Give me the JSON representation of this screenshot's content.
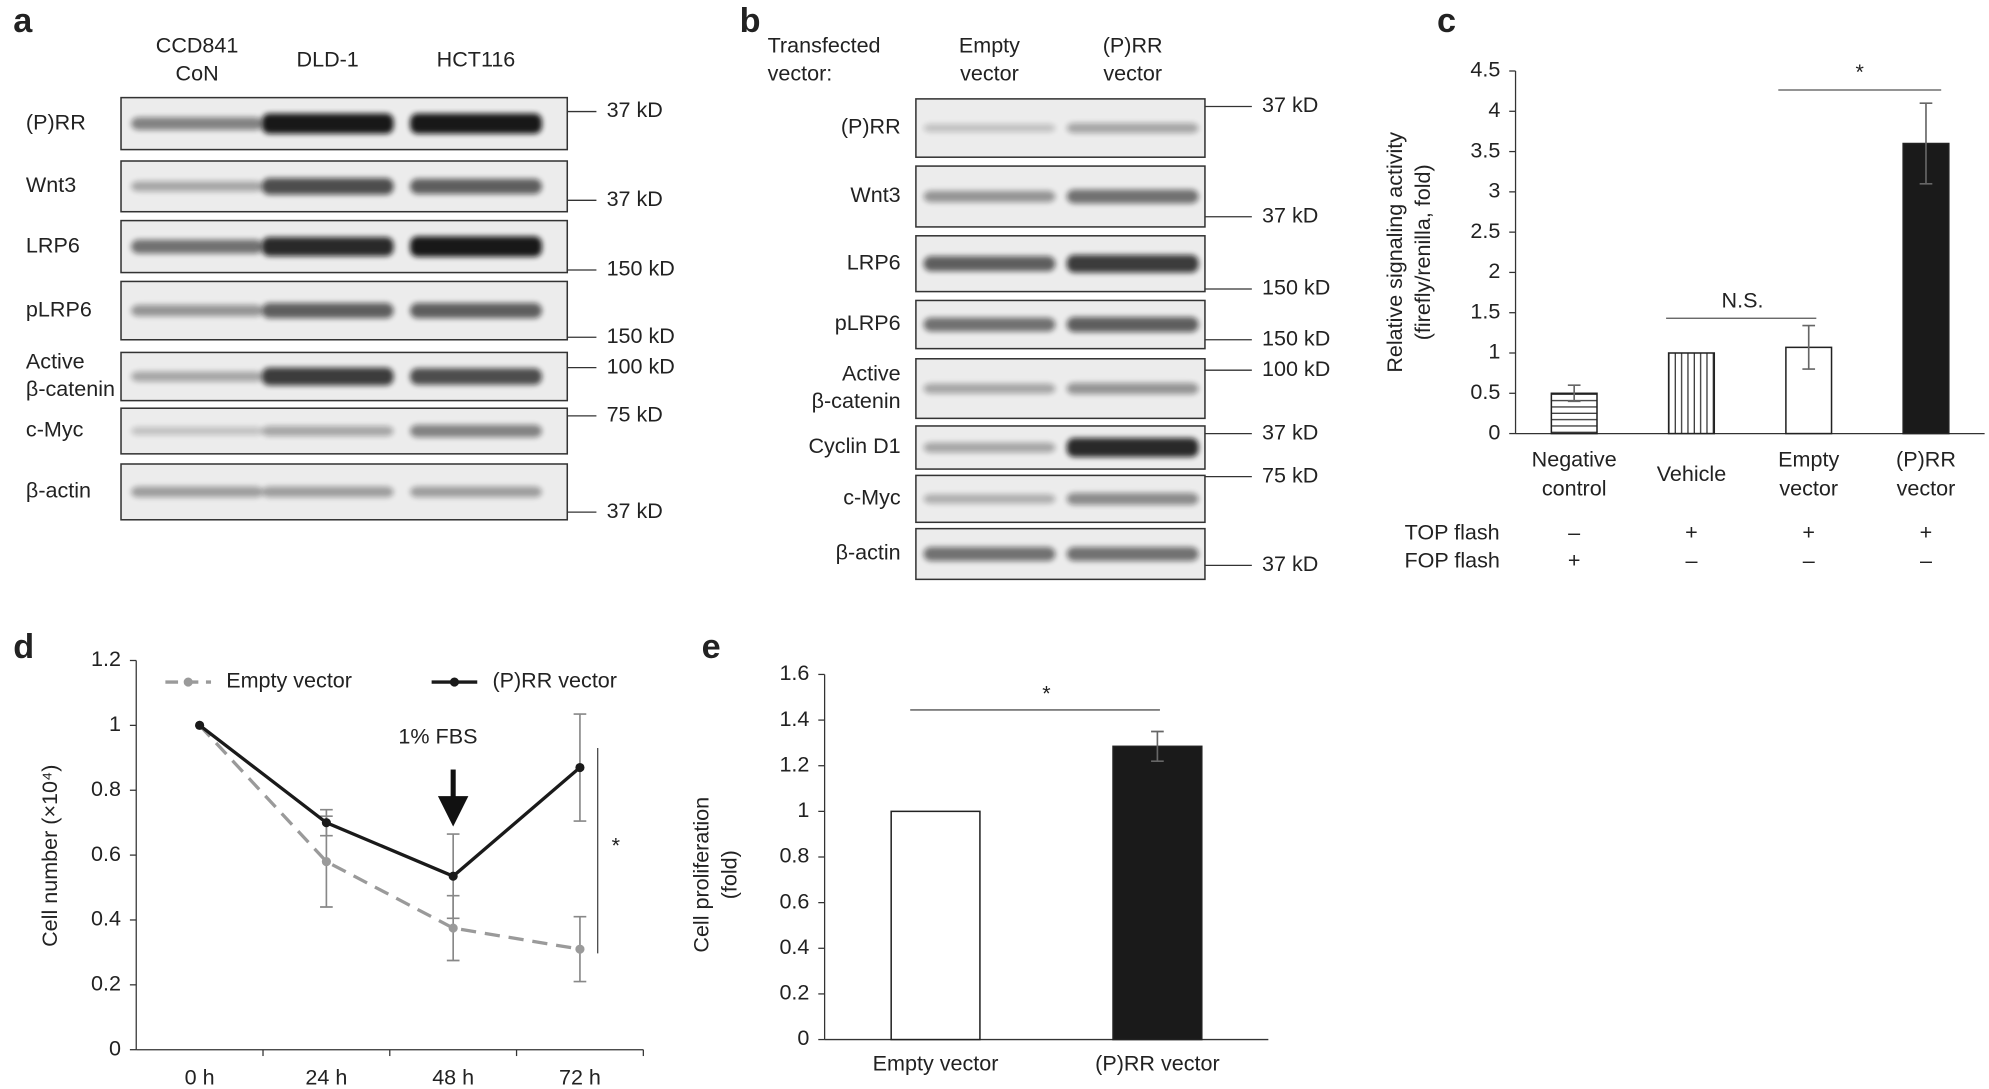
{
  "panel_labels": [
    "a",
    "b",
    "c",
    "d",
    "e"
  ],
  "blot_a": {
    "columns": [
      [
        "CCD841",
        "CoN"
      ],
      [
        "DLD-1"
      ],
      [
        "HCT116"
      ]
    ],
    "rows": [
      {
        "label": "(P)RR",
        "marker": "37 kD"
      },
      {
        "label": "Wnt3",
        "marker": "37 kD"
      },
      {
        "label": "LRP6",
        "marker": "150 kD"
      },
      {
        "label": "pLRP6",
        "marker": "150 kD"
      },
      {
        "label": [
          "Active",
          "β-catenin"
        ],
        "marker": "100 kD"
      },
      {
        "label": "c-Myc",
        "marker": "75 kD"
      },
      {
        "label": "β-actin",
        "marker": "37 kD"
      }
    ]
  },
  "blot_b": {
    "header": [
      "Transfected",
      "vector:"
    ],
    "columns": [
      [
        "Empty",
        "vector"
      ],
      [
        "(P)RR",
        "vector"
      ]
    ],
    "rows": [
      {
        "label": "(P)RR",
        "marker": "37 kD"
      },
      {
        "label": "Wnt3",
        "marker": "37 kD"
      },
      {
        "label": "LRP6",
        "marker": "150 kD"
      },
      {
        "label": "pLRP6",
        "marker": "150 kD"
      },
      {
        "label": [
          "Active",
          "β-catenin"
        ],
        "marker": "100 kD"
      },
      {
        "label": "Cyclin D1",
        "marker": "37 kD"
      },
      {
        "label": "c-Myc",
        "marker": "75 kD"
      },
      {
        "label": "β-actin",
        "marker": "37 kD"
      }
    ]
  },
  "chart_data": [
    {
      "type": "bar",
      "y_label": [
        "Relative signaling activity",
        "(firefly/renilla, fold)"
      ],
      "categories": [
        [
          "Negative",
          "control"
        ],
        [
          "Vehicle"
        ],
        [
          "Empty",
          "vector"
        ],
        [
          "(P)RR",
          "vector"
        ]
      ],
      "values": [
        0.5,
        1.0,
        1.07,
        3.6
      ],
      "errors": [
        0.1,
        0,
        0.27,
        0.5
      ],
      "colors": [
        "#ffffff",
        "#ffffff",
        "#ffffff",
        "#1a1a1a"
      ],
      "patterns": [
        "horizontal-stripes",
        "vertical-stripes",
        "none",
        "none"
      ],
      "ylim": [
        0,
        4.5
      ],
      "yticks": [
        0,
        0.5,
        1,
        1.5,
        2,
        2.5,
        3,
        3.5,
        4,
        4.5
      ],
      "annotations": [
        "*",
        "N.S."
      ],
      "conditions": [
        {
          "label": "TOP flash",
          "values": [
            "–",
            "+",
            "+",
            "+"
          ]
        },
        {
          "label": "FOP flash",
          "values": [
            "+",
            "–",
            "–",
            "–"
          ]
        }
      ]
    },
    {
      "type": "line",
      "y_label": "Cell number (×10⁴)",
      "categories": [
        "0 h",
        "24 h",
        "48 h",
        "72 h"
      ],
      "series": [
        {
          "name": "Empty vector",
          "color": "#9a9a9a",
          "dashed": true,
          "values": [
            1.0,
            0.58,
            0.375,
            0.31
          ],
          "errors": [
            0,
            0.14,
            0.1,
            0.1
          ]
        },
        {
          "name": "(P)RR vector",
          "color": "#1a1a1a",
          "dashed": false,
          "values": [
            1.0,
            0.7,
            0.535,
            0.87
          ],
          "errors": [
            0,
            0.04,
            0.13,
            0.165
          ]
        }
      ],
      "ylim": [
        0,
        1.2
      ],
      "yticks": [
        0,
        0.2,
        0.4,
        0.6,
        0.8,
        1,
        1.2
      ],
      "legend": "top",
      "annotations": [
        "1% FBS",
        "*"
      ]
    },
    {
      "type": "bar",
      "y_label": [
        "Cell proliferation",
        "(fold)"
      ],
      "categories": [
        [
          "Empty vector"
        ],
        [
          "(P)RR vector"
        ]
      ],
      "values": [
        1.0,
        1.285
      ],
      "errors": [
        0,
        0.065
      ],
      "colors": [
        "#ffffff",
        "#1a1a1a"
      ],
      "patterns": [
        "none",
        "none"
      ],
      "ylim": [
        0,
        1.6
      ],
      "yticks": [
        0,
        0.2,
        0.4,
        0.6,
        0.8,
        1,
        1.2,
        1.4,
        1.6
      ],
      "annotations": [
        "*"
      ]
    }
  ]
}
